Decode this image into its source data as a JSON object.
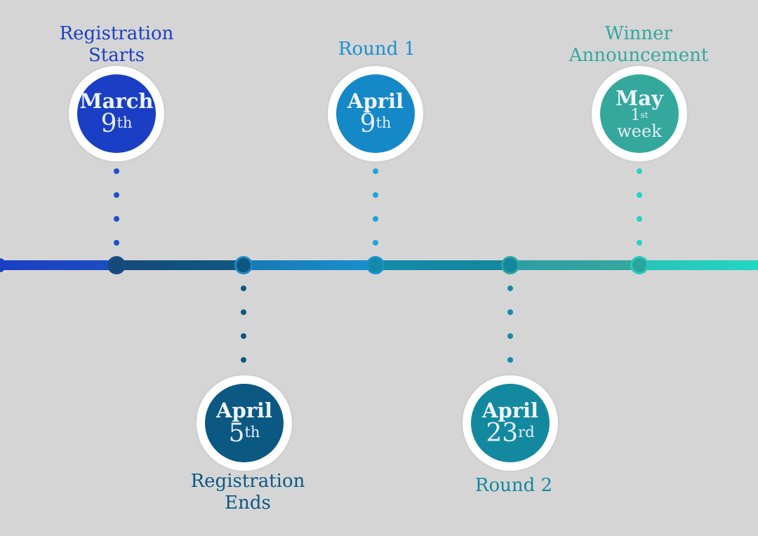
{
  "milestones": {
    "registration_starts": {
      "label_line1": "Registration",
      "label_line2": "Starts",
      "month": "March",
      "day": "9",
      "suffix": "th",
      "color": "#1a3fc4"
    },
    "registration_ends": {
      "label_line1": "Registration",
      "label_line2": "Ends",
      "month": "April",
      "day": "5",
      "suffix": "th",
      "color": "#0b5883"
    },
    "round_1": {
      "label": "Round 1",
      "month": "April",
      "day": "9",
      "suffix": "th",
      "color": "#1588c7"
    },
    "round_2": {
      "label": "Round 2",
      "month": "April",
      "day": "23",
      "suffix": "rd",
      "color": "#13899f"
    },
    "winner_announcement": {
      "label_line1": "Winner",
      "label_line2": "Announcement",
      "month": "May",
      "day": "1",
      "suffix": "st",
      "unit": "week",
      "color": "#34a89d"
    }
  },
  "colors": {
    "background": "#d6d5d6",
    "timeline_start": "#1a3fc4",
    "timeline_end": "#22d6c4"
  }
}
